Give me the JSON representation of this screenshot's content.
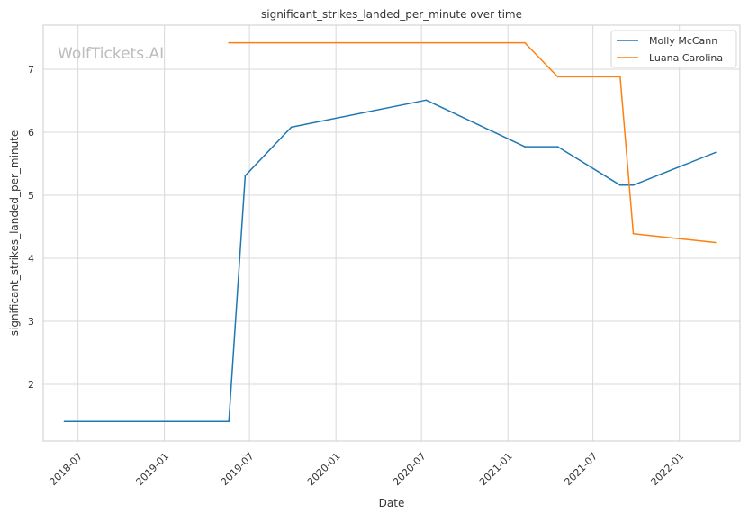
{
  "chart_data": {
    "type": "line",
    "title": "significant_strikes_landed_per_minute over time",
    "xlabel": "Date",
    "ylabel": "significant_strikes_landed_per_minute",
    "watermark": "WolfTickets.AI",
    "x_ticks": [
      "2018-07",
      "2019-01",
      "2019-07",
      "2020-01",
      "2020-07",
      "2021-01",
      "2021-07",
      "2022-01"
    ],
    "y_ticks": [
      2,
      3,
      4,
      5,
      6,
      7
    ],
    "xlim": [
      "2018-04-18",
      "2022-05-10"
    ],
    "ylim": [
      1.1,
      7.7
    ],
    "grid": true,
    "legend_position": "top-right",
    "series": [
      {
        "name": "Molly McCann",
        "color": "#1f77b4",
        "points": [
          {
            "x": "2018-06-02",
            "y": 1.41
          },
          {
            "x": "2019-05-18",
            "y": 1.41
          },
          {
            "x": "2019-06-22",
            "y": 5.31
          },
          {
            "x": "2019-09-28",
            "y": 6.08
          },
          {
            "x": "2020-07-11",
            "y": 6.51
          },
          {
            "x": "2021-02-06",
            "y": 5.77
          },
          {
            "x": "2021-04-17",
            "y": 5.77
          },
          {
            "x": "2021-08-28",
            "y": 5.16
          },
          {
            "x": "2021-09-25",
            "y": 5.16
          },
          {
            "x": "2022-03-19",
            "y": 5.68
          }
        ]
      },
      {
        "name": "Luana Carolina",
        "color": "#ff7f0e",
        "points": [
          {
            "x": "2019-05-18",
            "y": 7.42
          },
          {
            "x": "2021-02-06",
            "y": 7.42
          },
          {
            "x": "2021-04-17",
            "y": 6.88
          },
          {
            "x": "2021-08-28",
            "y": 6.88
          },
          {
            "x": "2021-09-25",
            "y": 4.39
          },
          {
            "x": "2022-03-19",
            "y": 4.25
          }
        ]
      }
    ]
  }
}
